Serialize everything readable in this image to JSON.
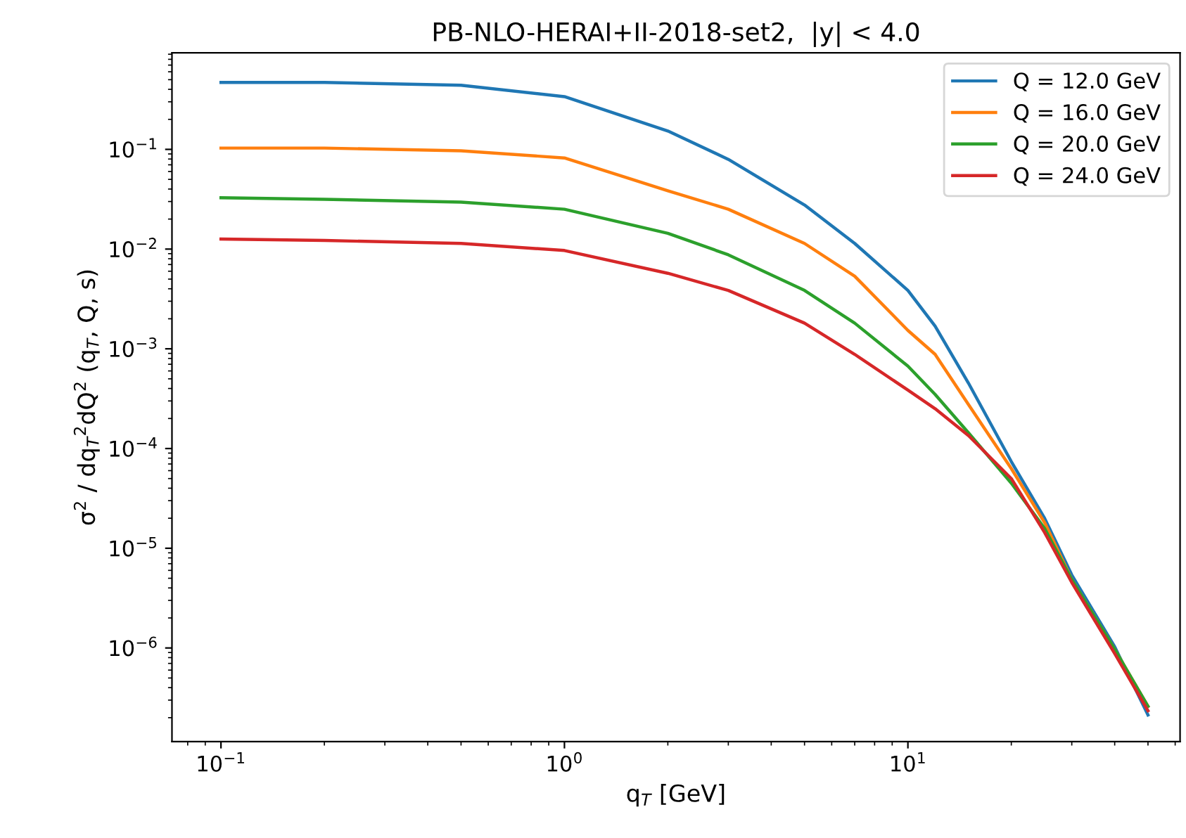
{
  "chart_data": {
    "type": "line",
    "title": "PB-NLO-HERAI+II-2018-set2,  |y| < 4.0",
    "xlabel": "q$_{T}$ [GeV]",
    "ylabel": "σ$^{2}$ / dq$_{T}$$^{2}$dQ$^{2}$ (q$_{T}$, Q, s)",
    "x": [
      0.1,
      0.2,
      0.5,
      1,
      2,
      3,
      5,
      7,
      10,
      12,
      15,
      20,
      25,
      30,
      40,
      50
    ],
    "series": [
      {
        "name": "Q = 12.0 GeV",
        "color": "#1f77b4",
        "values": [
          0.469,
          0.469,
          0.44,
          0.338,
          0.153,
          0.0794,
          0.0277,
          0.0114,
          0.00385,
          0.00169,
          0.000454,
          7.4e-05,
          2e-05,
          5.4e-06,
          1.03e-06,
          2.13e-07
        ]
      },
      {
        "name": "Q = 16.0 GeV",
        "color": "#ff7f0e",
        "values": [
          0.103,
          0.103,
          0.0968,
          0.082,
          0.0385,
          0.0251,
          0.0114,
          0.00535,
          0.00153,
          0.00088,
          0.000277,
          6.3e-05,
          1.81e-05,
          4.85e-06,
          9.7e-07,
          2.6e-07
        ]
      },
      {
        "name": "Q = 20.0 GeV",
        "color": "#2ca02c",
        "values": [
          0.0327,
          0.0316,
          0.0296,
          0.0251,
          0.0144,
          0.00877,
          0.00385,
          0.00181,
          0.00067,
          0.000349,
          0.000144,
          4.5e-05,
          1.58e-05,
          4.85e-06,
          9.7e-07,
          2.6e-07
        ]
      },
      {
        "name": "Q = 24.0 GeV",
        "color": "#d62728",
        "values": [
          0.0126,
          0.0122,
          0.0114,
          0.00968,
          0.00572,
          0.00385,
          0.00181,
          0.00088,
          0.000385,
          0.000251,
          0.000135,
          5e-05,
          1.44e-05,
          4.54e-06,
          8.8e-07,
          2.35e-07
        ]
      }
    ],
    "log": "xy",
    "xlim": [
      0.072,
      62
    ],
    "ylim": [
      1.15e-07,
      0.93
    ],
    "xticks": [
      {
        "value": 0.1,
        "label": "10$^{−1}$"
      },
      {
        "value": 1,
        "label": "10$^{0}$"
      },
      {
        "value": 10,
        "label": "10$^{1}$"
      }
    ],
    "yticks": [
      {
        "value": 1e-06,
        "label": "10$^{−6}$"
      },
      {
        "value": 1e-05,
        "label": "10$^{−5}$"
      },
      {
        "value": 0.0001,
        "label": "10$^{−4}$"
      },
      {
        "value": 0.001,
        "label": "10$^{−3}$"
      },
      {
        "value": 0.01,
        "label": "10$^{−2}$"
      },
      {
        "value": 0.1,
        "label": "10$^{−1}$"
      }
    ],
    "legend": "top right",
    "grid": false,
    "marker": "none",
    "line_style": "solid"
  }
}
